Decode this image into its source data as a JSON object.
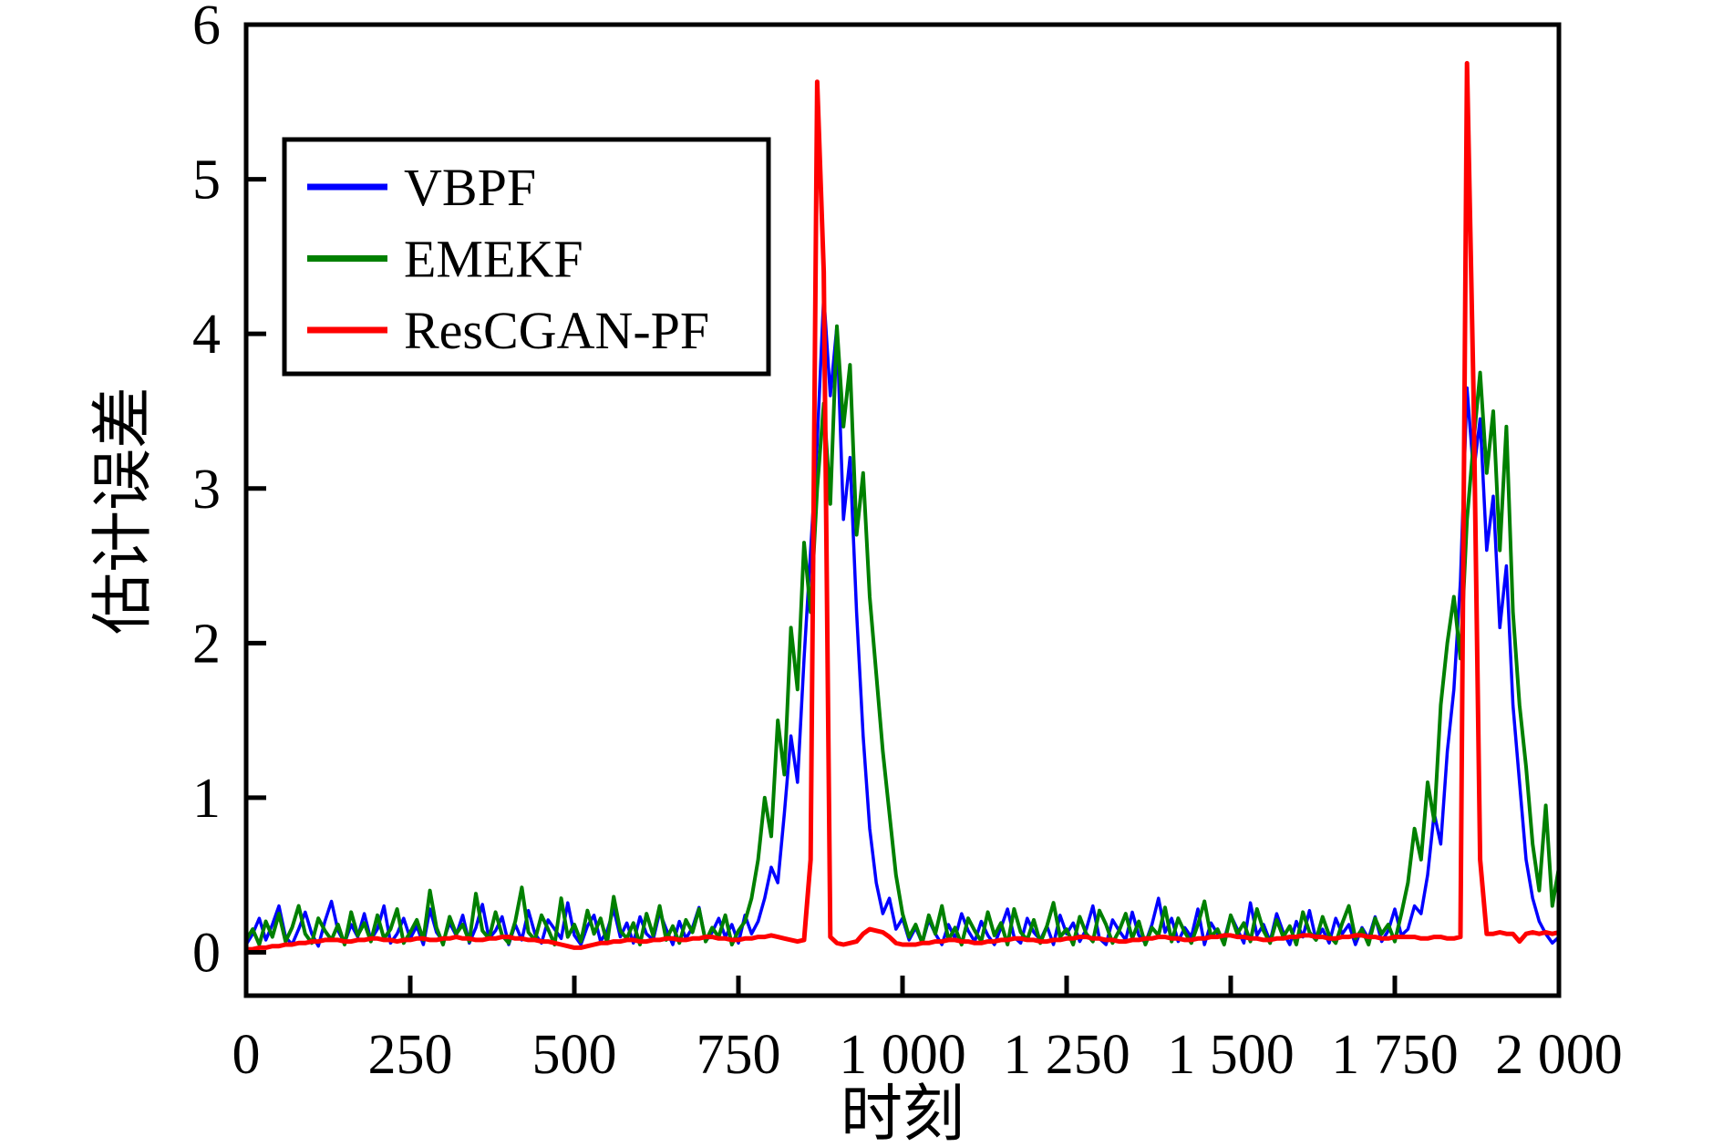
{
  "page": {
    "background": "#ffffff"
  },
  "chart_data": {
    "type": "line",
    "title": "",
    "xlabel": "时刻",
    "ylabel": "估计误差",
    "xlim": [
      0,
      2000
    ],
    "ylim": [
      -0.28,
      6
    ],
    "grid": false,
    "legend_position": "upper-left",
    "x_start": 0,
    "x_step": 10,
    "xticks": [
      {
        "value": 0,
        "label": "0"
      },
      {
        "value": 250,
        "label": "250"
      },
      {
        "value": 500,
        "label": "500"
      },
      {
        "value": 750,
        "label": "750"
      },
      {
        "value": 1000,
        "label": "1 000"
      },
      {
        "value": 1250,
        "label": "1 250"
      },
      {
        "value": 1500,
        "label": "1 500"
      },
      {
        "value": 1750,
        "label": "1 750"
      },
      {
        "value": 2000,
        "label": "2 000"
      }
    ],
    "yticks": [
      {
        "value": 0,
        "label": "0"
      },
      {
        "value": 1,
        "label": "1"
      },
      {
        "value": 2,
        "label": "2"
      },
      {
        "value": 3,
        "label": "3"
      },
      {
        "value": 4,
        "label": "4"
      },
      {
        "value": 5,
        "label": "5"
      },
      {
        "value": 6,
        "label": "6"
      }
    ],
    "series": [
      {
        "name": "VBPF",
        "color": "#0000ff",
        "width": 3.5,
        "values": [
          0.05,
          0.12,
          0.22,
          0.08,
          0.18,
          0.3,
          0.1,
          0.05,
          0.15,
          0.26,
          0.12,
          0.04,
          0.2,
          0.33,
          0.14,
          0.06,
          0.18,
          0.1,
          0.25,
          0.08,
          0.15,
          0.3,
          0.06,
          0.12,
          0.22,
          0.09,
          0.17,
          0.05,
          0.28,
          0.13,
          0.07,
          0.19,
          0.11,
          0.24,
          0.06,
          0.16,
          0.31,
          0.09,
          0.14,
          0.23,
          0.05,
          0.18,
          0.08,
          0.27,
          0.12,
          0.06,
          0.21,
          0.15,
          0.09,
          0.32,
          0.11,
          0.05,
          0.17,
          0.24,
          0.07,
          0.14,
          0.28,
          0.1,
          0.19,
          0.06,
          0.23,
          0.12,
          0.08,
          0.26,
          0.15,
          0.05,
          0.2,
          0.09,
          0.16,
          0.29,
          0.07,
          0.13,
          0.22,
          0.1,
          0.18,
          0.06,
          0.24,
          0.12,
          0.2,
          0.35,
          0.55,
          0.45,
          0.9,
          1.4,
          1.1,
          1.9,
          2.6,
          3.3,
          4.25,
          3.6,
          4.05,
          2.8,
          3.2,
          2.2,
          1.4,
          0.8,
          0.45,
          0.25,
          0.35,
          0.15,
          0.22,
          0.08,
          0.16,
          0.06,
          0.21,
          0.12,
          0.05,
          0.18,
          0.09,
          0.25,
          0.14,
          0.07,
          0.2,
          0.11,
          0.05,
          0.16,
          0.28,
          0.1,
          0.06,
          0.22,
          0.13,
          0.08,
          0.17,
          0.05,
          0.24,
          0.12,
          0.19,
          0.07,
          0.15,
          0.3,
          0.09,
          0.05,
          0.21,
          0.14,
          0.08,
          0.26,
          0.11,
          0.06,
          0.18,
          0.35,
          0.13,
          0.22,
          0.07,
          0.16,
          0.1,
          0.28,
          0.05,
          0.19,
          0.12,
          0.08,
          0.24,
          0.15,
          0.06,
          0.32,
          0.11,
          0.18,
          0.07,
          0.25,
          0.13,
          0.05,
          0.2,
          0.1,
          0.27,
          0.08,
          0.15,
          0.06,
          0.22,
          0.12,
          0.18,
          0.05,
          0.16,
          0.09,
          0.23,
          0.07,
          0.14,
          0.28,
          0.11,
          0.15,
          0.3,
          0.25,
          0.5,
          0.9,
          0.7,
          1.3,
          1.7,
          2.4,
          3.65,
          3.1,
          3.45,
          2.6,
          2.95,
          2.1,
          2.5,
          1.6,
          1.1,
          0.6,
          0.35,
          0.2,
          0.12,
          0.06,
          0.1
        ]
      },
      {
        "name": "EMEKF",
        "color": "#008000",
        "width": 4,
        "values": [
          0.08,
          0.15,
          0.05,
          0.2,
          0.1,
          0.25,
          0.07,
          0.16,
          0.3,
          0.12,
          0.06,
          0.22,
          0.14,
          0.08,
          0.18,
          0.05,
          0.26,
          0.11,
          0.19,
          0.07,
          0.24,
          0.09,
          0.15,
          0.28,
          0.06,
          0.13,
          0.21,
          0.08,
          0.4,
          0.16,
          0.05,
          0.23,
          0.12,
          0.18,
          0.07,
          0.38,
          0.14,
          0.09,
          0.26,
          0.11,
          0.06,
          0.2,
          0.42,
          0.13,
          0.08,
          0.24,
          0.15,
          0.05,
          0.35,
          0.1,
          0.18,
          0.07,
          0.27,
          0.12,
          0.22,
          0.06,
          0.36,
          0.14,
          0.09,
          0.19,
          0.05,
          0.25,
          0.11,
          0.3,
          0.08,
          0.17,
          0.06,
          0.21,
          0.13,
          0.28,
          0.07,
          0.16,
          0.1,
          0.24,
          0.05,
          0.14,
          0.2,
          0.35,
          0.6,
          1.0,
          0.75,
          1.5,
          1.15,
          2.1,
          1.7,
          2.65,
          2.2,
          3.0,
          3.55,
          2.9,
          4.05,
          3.4,
          3.8,
          2.7,
          3.1,
          2.3,
          1.8,
          1.3,
          0.9,
          0.5,
          0.25,
          0.1,
          0.18,
          0.06,
          0.24,
          0.12,
          0.3,
          0.08,
          0.16,
          0.05,
          0.22,
          0.14,
          0.07,
          0.26,
          0.11,
          0.19,
          0.05,
          0.28,
          0.13,
          0.08,
          0.21,
          0.06,
          0.17,
          0.32,
          0.1,
          0.15,
          0.05,
          0.23,
          0.12,
          0.07,
          0.27,
          0.18,
          0.06,
          0.14,
          0.25,
          0.09,
          0.2,
          0.05,
          0.16,
          0.11,
          0.29,
          0.07,
          0.22,
          0.13,
          0.06,
          0.18,
          0.33,
          0.1,
          0.15,
          0.05,
          0.24,
          0.12,
          0.19,
          0.07,
          0.28,
          0.14,
          0.06,
          0.21,
          0.1,
          0.17,
          0.05,
          0.26,
          0.13,
          0.08,
          0.23,
          0.11,
          0.06,
          0.19,
          0.3,
          0.09,
          0.15,
          0.05,
          0.22,
          0.12,
          0.18,
          0.07,
          0.25,
          0.45,
          0.8,
          0.6,
          1.1,
          0.85,
          1.6,
          2.0,
          2.3,
          1.9,
          2.8,
          3.3,
          3.75,
          3.1,
          3.5,
          2.6,
          3.4,
          2.2,
          1.6,
          1.2,
          0.7,
          0.4,
          0.95,
          0.3,
          0.55
        ]
      },
      {
        "name": "ResCGAN-PF",
        "color": "#ff0000",
        "width": 5,
        "values": [
          0.02,
          0.02,
          0.03,
          0.03,
          0.04,
          0.04,
          0.05,
          0.05,
          0.06,
          0.06,
          0.07,
          0.07,
          0.08,
          0.08,
          0.08,
          0.07,
          0.07,
          0.08,
          0.08,
          0.09,
          0.09,
          0.08,
          0.08,
          0.07,
          0.08,
          0.08,
          0.09,
          0.09,
          0.08,
          0.08,
          0.09,
          0.09,
          0.1,
          0.09,
          0.09,
          0.08,
          0.08,
          0.09,
          0.09,
          0.1,
          0.1,
          0.09,
          0.09,
          0.08,
          0.08,
          0.07,
          0.07,
          0.06,
          0.05,
          0.04,
          0.03,
          0.03,
          0.04,
          0.05,
          0.06,
          0.06,
          0.07,
          0.07,
          0.08,
          0.08,
          0.07,
          0.07,
          0.08,
          0.08,
          0.09,
          0.09,
          0.08,
          0.08,
          0.09,
          0.09,
          0.1,
          0.1,
          0.09,
          0.09,
          0.08,
          0.08,
          0.09,
          0.09,
          0.1,
          0.1,
          0.11,
          0.1,
          0.09,
          0.08,
          0.07,
          0.08,
          0.6,
          5.63,
          4.4,
          0.1,
          0.06,
          0.05,
          0.06,
          0.07,
          0.12,
          0.15,
          0.14,
          0.13,
          0.1,
          0.06,
          0.05,
          0.05,
          0.05,
          0.06,
          0.06,
          0.07,
          0.07,
          0.08,
          0.08,
          0.07,
          0.07,
          0.06,
          0.06,
          0.07,
          0.07,
          0.08,
          0.08,
          0.09,
          0.09,
          0.08,
          0.08,
          0.07,
          0.07,
          0.08,
          0.08,
          0.09,
          0.09,
          0.1,
          0.1,
          0.09,
          0.09,
          0.08,
          0.08,
          0.07,
          0.07,
          0.08,
          0.08,
          0.09,
          0.09,
          0.1,
          0.1,
          0.09,
          0.09,
          0.08,
          0.08,
          0.09,
          0.09,
          0.1,
          0.1,
          0.11,
          0.11,
          0.1,
          0.1,
          0.09,
          0.09,
          0.08,
          0.08,
          0.09,
          0.09,
          0.1,
          0.1,
          0.11,
          0.11,
          0.1,
          0.1,
          0.09,
          0.09,
          0.1,
          0.1,
          0.11,
          0.11,
          0.1,
          0.1,
          0.09,
          0.09,
          0.1,
          0.1,
          0.1,
          0.1,
          0.09,
          0.09,
          0.1,
          0.1,
          0.09,
          0.09,
          0.1,
          5.75,
          3.6,
          0.6,
          0.12,
          0.12,
          0.13,
          0.12,
          0.12,
          0.07,
          0.12,
          0.13,
          0.12,
          0.13,
          0.12,
          0.13
        ]
      }
    ]
  }
}
